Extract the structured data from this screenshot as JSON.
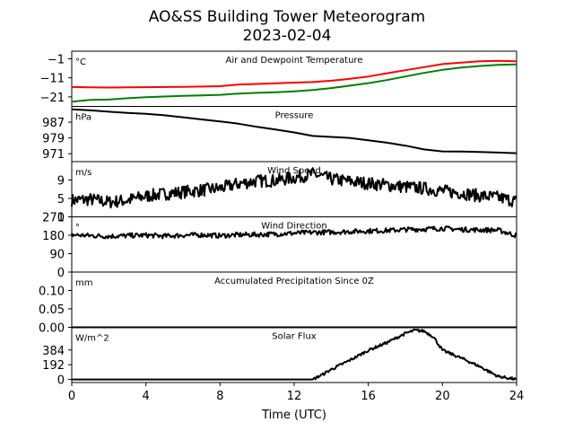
{
  "chart_data": {
    "type": "line",
    "title": "AO&SS Building Tower Meteorogram",
    "subtitle": "2023-02-04",
    "xlabel": "Time (UTC)",
    "xlim": [
      0,
      24
    ],
    "xticks": [
      0,
      4,
      8,
      12,
      16,
      20,
      24
    ],
    "xtick_labels": [
      "0",
      "4",
      "8",
      "12",
      "16",
      "20",
      "24"
    ],
    "panels": [
      {
        "id": "temperature",
        "title": "Air and Dewpoint Temperature",
        "unit": "°C",
        "ylim": [
          -26,
          3
        ],
        "yticks": [
          -21,
          -11,
          -1
        ],
        "ytick_labels": [
          "−21",
          "−11",
          "−1"
        ],
        "series": [
          {
            "color": "#ff0000",
            "points": [
              [
                0,
                -15.8
              ],
              [
                1,
                -16.0
              ],
              [
                2,
                -16.1
              ],
              [
                3,
                -16.0
              ],
              [
                4,
                -15.9
              ],
              [
                5,
                -15.8
              ],
              [
                6,
                -15.7
              ],
              [
                7,
                -15.6
              ],
              [
                8,
                -15.4
              ],
              [
                9,
                -14.5
              ],
              [
                10,
                -14.2
              ],
              [
                11,
                -13.9
              ],
              [
                12,
                -13.5
              ],
              [
                13,
                -13.2
              ],
              [
                14,
                -12.5
              ],
              [
                15,
                -11.5
              ],
              [
                16,
                -10.3
              ],
              [
                17,
                -8.6
              ],
              [
                18,
                -7.0
              ],
              [
                19,
                -5.4
              ],
              [
                20,
                -3.8
              ],
              [
                21,
                -3.0
              ],
              [
                22,
                -2.3
              ],
              [
                23,
                -2.1
              ],
              [
                24,
                -2.3
              ]
            ]
          },
          {
            "color": "#008000",
            "points": [
              [
                0,
                -23.5
              ],
              [
                1,
                -22.6
              ],
              [
                2,
                -22.4
              ],
              [
                3,
                -21.7
              ],
              [
                4,
                -21.2
              ],
              [
                5,
                -20.8
              ],
              [
                6,
                -20.5
              ],
              [
                7,
                -20.2
              ],
              [
                8,
                -19.9
              ],
              [
                9,
                -19.3
              ],
              [
                10,
                -18.9
              ],
              [
                11,
                -18.6
              ],
              [
                12,
                -18.1
              ],
              [
                13,
                -17.4
              ],
              [
                14,
                -16.4
              ],
              [
                15,
                -15.1
              ],
              [
                16,
                -13.8
              ],
              [
                17,
                -12.2
              ],
              [
                18,
                -10.3
              ],
              [
                19,
                -8.4
              ],
              [
                20,
                -6.8
              ],
              [
                21,
                -5.6
              ],
              [
                22,
                -4.8
              ],
              [
                23,
                -4.2
              ],
              [
                24,
                -4.0
              ]
            ]
          }
        ]
      },
      {
        "id": "pressure",
        "title": "Pressure",
        "unit": "hPa",
        "ylim": [
          967,
          995
        ],
        "yticks": [
          971,
          979,
          987
        ],
        "ytick_labels": [
          "971",
          "979",
          "987"
        ],
        "series": [
          {
            "color": "#000000",
            "points": [
              [
                0,
                993.5
              ],
              [
                1,
                993.0
              ],
              [
                2,
                992.3
              ],
              [
                3,
                991.7
              ],
              [
                4,
                991.2
              ],
              [
                5,
                990.5
              ],
              [
                6,
                989.5
              ],
              [
                7,
                988.4
              ],
              [
                8,
                987.4
              ],
              [
                9,
                986.2
              ],
              [
                10,
                984.6
              ],
              [
                11,
                983.3
              ],
              [
                12,
                981.8
              ],
              [
                13,
                980.0
              ],
              [
                14,
                979.5
              ],
              [
                15,
                979.0
              ],
              [
                16,
                977.8
              ],
              [
                17,
                976.6
              ],
              [
                18,
                975.1
              ],
              [
                19,
                973.2
              ],
              [
                20,
                972.2
              ],
              [
                21,
                972.1
              ],
              [
                22,
                971.9
              ],
              [
                23,
                971.6
              ],
              [
                24,
                971.3
              ]
            ]
          }
        ]
      },
      {
        "id": "wind-speed",
        "title": "Wind Speed",
        "unit": "m/s",
        "ylim": [
          1,
          13
        ],
        "yticks": [
          1,
          5,
          9
        ],
        "ytick_labels": [
          "1",
          "5",
          "9"
        ],
        "series": [
          {
            "color": "#000000",
            "noise": 1.4,
            "points": [
              [
                0,
                4.6
              ],
              [
                1,
                4.8
              ],
              [
                2,
                4.2
              ],
              [
                3,
                4.6
              ],
              [
                4,
                5.5
              ],
              [
                5,
                6.0
              ],
              [
                6,
                6.4
              ],
              [
                7,
                6.8
              ],
              [
                8,
                7.2
              ],
              [
                9,
                8.2
              ],
              [
                10,
                8.8
              ],
              [
                11,
                8.9
              ],
              [
                12,
                9.5
              ],
              [
                13,
                10.3
              ],
              [
                14,
                9.2
              ],
              [
                15,
                8.7
              ],
              [
                16,
                8.3
              ],
              [
                17,
                7.9
              ],
              [
                18,
                7.5
              ],
              [
                19,
                7.2
              ],
              [
                20,
                6.6
              ],
              [
                21,
                6.2
              ],
              [
                22,
                5.6
              ],
              [
                23,
                5.2
              ],
              [
                24,
                4.4
              ]
            ]
          }
        ]
      },
      {
        "id": "wind-direction",
        "title": "Wind Direction",
        "unit": "°",
        "ylim": [
          0,
          270
        ],
        "yticks": [
          0,
          90,
          180,
          270
        ],
        "ytick_labels": [
          "0",
          "90",
          "180",
          "270"
        ],
        "series": [
          {
            "color": "#000000",
            "noise": 12,
            "points": [
              [
                0,
                182
              ],
              [
                1,
                178
              ],
              [
                2,
                175
              ],
              [
                3,
                178
              ],
              [
                4,
                180
              ],
              [
                5,
                176
              ],
              [
                6,
                180
              ],
              [
                7,
                182
              ],
              [
                8,
                178
              ],
              [
                9,
                182
              ],
              [
                10,
                183
              ],
              [
                11,
                186
              ],
              [
                12,
                190
              ],
              [
                13,
                194
              ],
              [
                14,
                195
              ],
              [
                15,
                198
              ],
              [
                16,
                201
              ],
              [
                17,
                203
              ],
              [
                18,
                208
              ],
              [
                19,
                210
              ],
              [
                20,
                214
              ],
              [
                21,
                208
              ],
              [
                22,
                206
              ],
              [
                23,
                205
              ],
              [
                24,
                178
              ]
            ]
          }
        ]
      },
      {
        "id": "precipitation",
        "title": "Accumulated Precipitation Since 0Z",
        "unit": "mm",
        "ylim": [
          0,
          0.15
        ],
        "yticks": [
          0,
          0.05,
          0.1
        ],
        "ytick_labels": [
          "0.00",
          "0.05",
          "0.10"
        ],
        "series": [
          {
            "color": "#000000",
            "points": [
              [
                0,
                0
              ],
              [
                24,
                0
              ]
            ]
          }
        ]
      },
      {
        "id": "solar-flux",
        "title": "Solar Flux",
        "unit": "W/m^2",
        "ylim": [
          -40,
          680
        ],
        "yticks": [
          0,
          192,
          384
        ],
        "ytick_labels": [
          "0",
          "192",
          "384"
        ],
        "series": [
          {
            "color": "#000000",
            "noise": 18,
            "points": [
              [
                0,
                0
              ],
              [
                12,
                0
              ],
              [
                13,
                0
              ],
              [
                13.5,
                60
              ],
              [
                14,
                130
              ],
              [
                15,
                250
              ],
              [
                16,
                380
              ],
              [
                17,
                480
              ],
              [
                18,
                600
              ],
              [
                18.5,
                640
              ],
              [
                19,
                630
              ],
              [
                19.5,
                560
              ],
              [
                20,
                380
              ],
              [
                21,
                280
              ],
              [
                22,
                170
              ],
              [
                23,
                40
              ],
              [
                24,
                0
              ]
            ]
          }
        ]
      }
    ]
  }
}
